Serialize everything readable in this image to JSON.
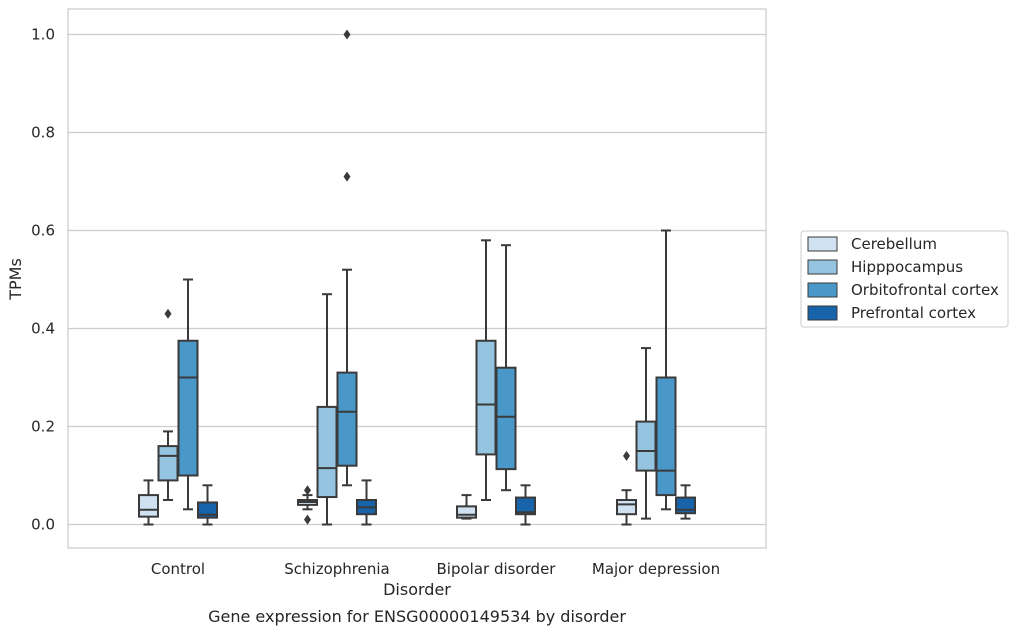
{
  "chart_data": {
    "type": "box",
    "caption": "Gene expression for ENSG00000149534 by disorder",
    "xlabel": "Disorder",
    "ylabel": "TPMs",
    "ylim": [
      -0.048,
      1.05
    ],
    "yticks": [
      "0.0",
      "0.2",
      "0.4",
      "0.6",
      "0.8",
      "1.0"
    ],
    "ytick_values": [
      0.0,
      0.2,
      0.4,
      0.6,
      0.8,
      1.0
    ],
    "grid": true,
    "legend_position": "right",
    "categories": [
      "Control",
      "Schizophrenia",
      "Bipolar disorder",
      "Major depression"
    ],
    "series": [
      {
        "name": "Cerebellum",
        "color": "#d0e1f2",
        "boxes": [
          {
            "category": "Control",
            "min": 0.0,
            "q1": 0.016,
            "median": 0.03,
            "q3": 0.06,
            "max": 0.09,
            "outliers": []
          },
          {
            "category": "Schizophrenia",
            "min": 0.031,
            "q1": 0.04,
            "median": 0.046,
            "q3": 0.05,
            "max": 0.06,
            "outliers": [
              0.07,
              0.01
            ]
          },
          {
            "category": "Bipolar disorder",
            "min": 0.012,
            "q1": 0.014,
            "median": 0.02,
            "q3": 0.037,
            "max": 0.06,
            "outliers": []
          },
          {
            "category": "Major depression",
            "min": 0.0,
            "q1": 0.021,
            "median": 0.041,
            "q3": 0.05,
            "max": 0.07,
            "outliers": [
              0.14
            ]
          }
        ]
      },
      {
        "name": "Hipppocampus",
        "color": "#94c4df",
        "boxes": [
          {
            "category": "Control",
            "min": 0.05,
            "q1": 0.09,
            "median": 0.14,
            "q3": 0.16,
            "max": 0.19,
            "outliers": [
              0.43
            ]
          },
          {
            "category": "Schizophrenia",
            "min": 0.0,
            "q1": 0.056,
            "median": 0.115,
            "q3": 0.24,
            "max": 0.47,
            "outliers": []
          },
          {
            "category": "Bipolar disorder",
            "min": 0.05,
            "q1": 0.143,
            "median": 0.245,
            "q3": 0.375,
            "max": 0.58,
            "outliers": []
          },
          {
            "category": "Major depression",
            "min": 0.012,
            "q1": 0.11,
            "median": 0.15,
            "q3": 0.21,
            "max": 0.36,
            "outliers": []
          }
        ]
      },
      {
        "name": "Orbitofrontal cortex",
        "color": "#4a98c9",
        "boxes": [
          {
            "category": "Control",
            "min": 0.031,
            "q1": 0.1,
            "median": 0.3,
            "q3": 0.375,
            "max": 0.5,
            "outliers": []
          },
          {
            "category": "Schizophrenia",
            "min": 0.08,
            "q1": 0.12,
            "median": 0.23,
            "q3": 0.31,
            "max": 0.52,
            "outliers": [
              1.0,
              0.71
            ]
          },
          {
            "category": "Bipolar disorder",
            "min": 0.07,
            "q1": 0.113,
            "median": 0.22,
            "q3": 0.32,
            "max": 0.57,
            "outliers": []
          },
          {
            "category": "Major depression",
            "min": 0.031,
            "q1": 0.06,
            "median": 0.11,
            "q3": 0.3,
            "max": 0.6,
            "outliers": []
          }
        ]
      },
      {
        "name": "Prefrontal cortex",
        "color": "#1764ab",
        "boxes": [
          {
            "category": "Control",
            "min": 0.0,
            "q1": 0.014,
            "median": 0.02,
            "q3": 0.045,
            "max": 0.08,
            "outliers": []
          },
          {
            "category": "Schizophrenia",
            "min": 0.0,
            "q1": 0.021,
            "median": 0.035,
            "q3": 0.05,
            "max": 0.09,
            "outliers": []
          },
          {
            "category": "Bipolar disorder",
            "min": 0.0,
            "q1": 0.021,
            "median": 0.025,
            "q3": 0.055,
            "max": 0.08,
            "outliers": []
          },
          {
            "category": "Major depression",
            "min": 0.012,
            "q1": 0.023,
            "median": 0.03,
            "q3": 0.055,
            "max": 0.08,
            "outliers": []
          }
        ]
      }
    ]
  }
}
